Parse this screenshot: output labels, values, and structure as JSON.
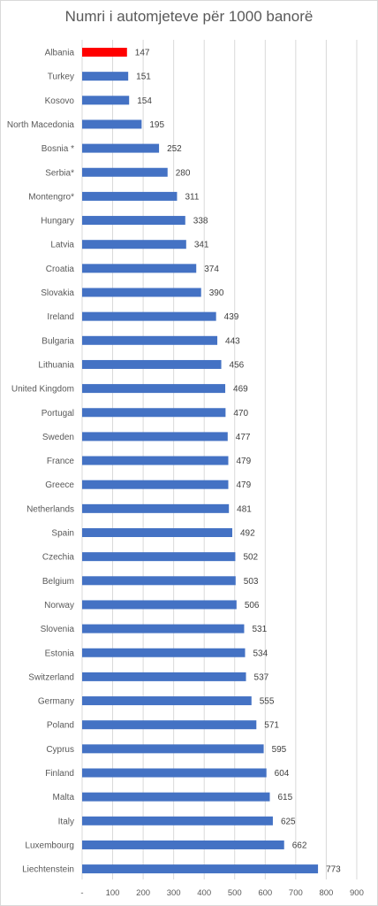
{
  "chart_data": {
    "type": "bar",
    "orientation": "horizontal",
    "title": "Numri i automjeteve për 1000 banorë",
    "categories": [
      "Albania",
      "Turkey",
      "Kosovo",
      "North Macedonia",
      "Bosnia *",
      "Serbia*",
      "Montengro*",
      "Hungary",
      "Latvia",
      "Croatia",
      "Slovakia",
      "Ireland",
      "Bulgaria",
      "Lithuania",
      "United Kingdom",
      "Portugal",
      "Sweden",
      "France",
      "Greece",
      "Netherlands",
      "Spain",
      "Czechia",
      "Belgium",
      "Norway",
      "Slovenia",
      "Estonia",
      "Switzerland",
      "Germany",
      "Poland",
      "Cyprus",
      "Finland",
      "Malta",
      "Italy",
      "Luxembourg",
      "Liechtenstein"
    ],
    "values": [
      147,
      151,
      154,
      195,
      252,
      280,
      311,
      338,
      341,
      374,
      390,
      439,
      443,
      456,
      469,
      470,
      477,
      479,
      479,
      481,
      492,
      502,
      503,
      506,
      531,
      534,
      537,
      555,
      571,
      595,
      604,
      615,
      625,
      662,
      773
    ],
    "xlim": [
      0,
      900
    ],
    "xticks": [
      "-",
      "100",
      "200",
      "300",
      "400",
      "500",
      "600",
      "700",
      "800",
      "900"
    ],
    "grid": true,
    "colors": {
      "default": "#4472c4",
      "highlight": "#ff0000"
    },
    "highlight_category": "Albania"
  }
}
